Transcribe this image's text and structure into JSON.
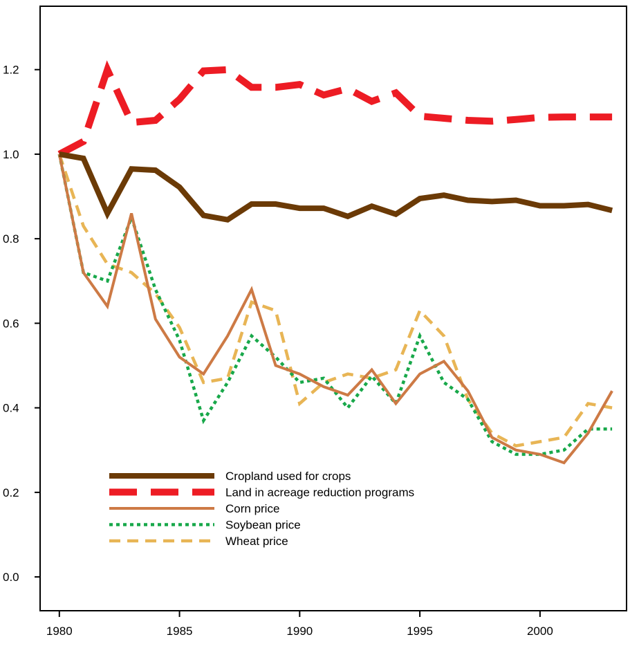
{
  "chart_data": {
    "type": "line",
    "title": "",
    "xlabel": "",
    "ylabel": "",
    "xlim": [
      1979.2,
      2003.6
    ],
    "ylim": [
      -0.08,
      1.35
    ],
    "x_ticks": [
      1980,
      1985,
      1990,
      1995,
      2000
    ],
    "y_ticks": [
      0.0,
      0.2,
      0.4,
      0.6,
      0.8,
      1.0,
      1.2
    ],
    "y_tick_labels": [
      "0.0",
      "0.2",
      "0.4",
      "0.6",
      "0.8",
      "1.0",
      "1.2"
    ],
    "grid": false,
    "legend_position": "lower-left",
    "x": [
      1980,
      1981,
      1982,
      1983,
      1984,
      1985,
      1986,
      1987,
      1988,
      1989,
      1990,
      1991,
      1992,
      1993,
      1994,
      1995,
      1996,
      1997,
      1998,
      1999,
      2000,
      2001,
      2002,
      2003
    ],
    "series": [
      {
        "name": "Cropland used for crops",
        "color": "#6b3a06",
        "style": "solid-thick",
        "values": [
          1.0,
          0.99,
          0.86,
          0.965,
          0.962,
          0.922,
          0.855,
          0.845,
          0.882,
          0.882,
          0.872,
          0.872,
          0.853,
          0.877,
          0.858,
          0.895,
          0.903,
          0.891,
          0.888,
          0.891,
          0.878,
          0.878,
          0.881,
          0.867
        ]
      },
      {
        "name": "Land in acreage reduction programs",
        "color": "#ed1c24",
        "style": "dashed-thick",
        "values": [
          1.0,
          1.03,
          1.2,
          1.075,
          1.08,
          1.13,
          1.197,
          1.2,
          1.158,
          1.158,
          1.165,
          1.14,
          1.155,
          1.125,
          1.145,
          1.09,
          1.085,
          1.08,
          1.078,
          1.082,
          1.087,
          1.088,
          1.088,
          1.088
        ]
      },
      {
        "name": "Corn price",
        "color": "#cd7a45",
        "style": "solid",
        "values": [
          1.0,
          0.72,
          0.64,
          0.86,
          0.61,
          0.52,
          0.48,
          0.57,
          0.68,
          0.5,
          0.48,
          0.45,
          0.43,
          0.49,
          0.41,
          0.48,
          0.51,
          0.44,
          0.33,
          0.3,
          0.29,
          0.27,
          0.34,
          0.44
        ]
      },
      {
        "name": "Soybean price",
        "color": "#18a84a",
        "style": "dotted",
        "values": [
          1.0,
          0.72,
          0.7,
          0.85,
          0.68,
          0.56,
          0.37,
          0.46,
          0.57,
          0.52,
          0.46,
          0.47,
          0.4,
          0.475,
          0.41,
          0.57,
          0.46,
          0.42,
          0.32,
          0.29,
          0.29,
          0.3,
          0.35,
          0.35
        ]
      },
      {
        "name": "Wheat price",
        "color": "#e8b555",
        "style": "dashed",
        "values": [
          1.0,
          0.83,
          0.74,
          0.72,
          0.67,
          0.59,
          0.46,
          0.47,
          0.65,
          0.63,
          0.41,
          0.46,
          0.48,
          0.47,
          0.49,
          0.63,
          0.57,
          0.42,
          0.34,
          0.31,
          0.32,
          0.33,
          0.41,
          0.4
        ]
      }
    ]
  }
}
